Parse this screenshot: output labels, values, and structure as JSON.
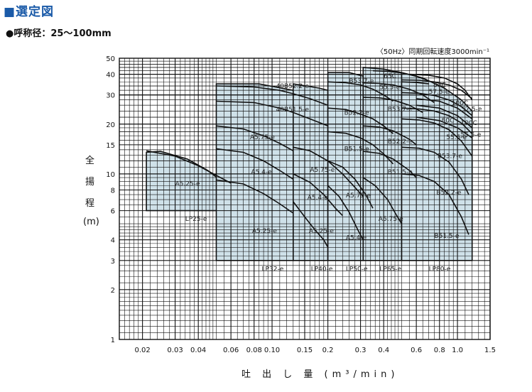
{
  "heading": "■選定図",
  "subheading": "●呼称径：25〜100mm",
  "note": "〈50Hz〉同期回転速度3000min⁻¹",
  "colors": {
    "region_fill": "#cfe1e9",
    "curve": "#111111",
    "grid": "#111111",
    "heading": "#1a5aa8"
  },
  "chart_data": {
    "type": "line",
    "title": "",
    "ylabel_chars": [
      "全",
      "揚",
      "程",
      "(m)"
    ],
    "xlabel": "吐 出 し 量 (m³/min)",
    "xscale": "log",
    "yscale": "log",
    "xlim": [
      0.015,
      1.5
    ],
    "ylim": [
      1,
      50
    ],
    "xticks": [
      0.02,
      0.03,
      0.04,
      0.06,
      0.08,
      0.1,
      0.15,
      0.2,
      0.3,
      0.4,
      0.6,
      0.8,
      1.0,
      1.5
    ],
    "xtick_labels": [
      "0.02",
      "0.03",
      "0.04",
      "0.06",
      "0.08",
      "0.10",
      "0.15",
      "0.2",
      "0.3",
      "0.4",
      "0.6",
      "0.8",
      "1.0",
      "1.5"
    ],
    "yticks": [
      1,
      2,
      3,
      4,
      6,
      8,
      10,
      15,
      20,
      30,
      40,
      50
    ],
    "ytick_labels": [
      "1",
      "2",
      "3",
      "4",
      "6",
      "8",
      "10",
      "15",
      "20",
      "30",
      "40",
      "50"
    ],
    "regions": [
      {
        "name": "LP25-e",
        "poly": [
          [
            0.021,
            6
          ],
          [
            0.021,
            13.5
          ],
          [
            0.025,
            13.7
          ],
          [
            0.035,
            12.3
          ],
          [
            0.045,
            10.5
          ],
          [
            0.055,
            8.8
          ],
          [
            0.06,
            8
          ],
          [
            0.06,
            6
          ]
        ],
        "label_at": [
          0.034,
          5.2
        ]
      },
      {
        "name": "LP32-e",
        "poly": [
          [
            0.05,
            3
          ],
          [
            0.05,
            35
          ],
          [
            0.085,
            35
          ],
          [
            0.13,
            32
          ],
          [
            0.13,
            3
          ]
        ],
        "label_at": [
          0.088,
          2.6
        ]
      },
      {
        "name": "LP40-e",
        "poly": [
          [
            0.13,
            3
          ],
          [
            0.13,
            35
          ],
          [
            0.18,
            33
          ],
          [
            0.2,
            32
          ],
          [
            0.2,
            3
          ]
        ],
        "label_at": [
          0.162,
          2.6
        ]
      },
      {
        "name": "LP50-e",
        "poly": [
          [
            0.2,
            3
          ],
          [
            0.2,
            41
          ],
          [
            0.26,
            41
          ],
          [
            0.31,
            39
          ],
          [
            0.31,
            3
          ]
        ],
        "label_at": [
          0.25,
          2.6
        ]
      },
      {
        "name": "LP65-e",
        "poly": [
          [
            0.31,
            3
          ],
          [
            0.31,
            44
          ],
          [
            0.4,
            43
          ],
          [
            0.5,
            41
          ],
          [
            0.5,
            3
          ]
        ],
        "label_at": [
          0.38,
          2.6
        ]
      },
      {
        "name": "LP80-e",
        "poly": [
          [
            0.5,
            3
          ],
          [
            0.5,
            41
          ],
          [
            0.65,
            38
          ],
          [
            0.85,
            33
          ],
          [
            1.05,
            28
          ],
          [
            1.2,
            24
          ],
          [
            1.2,
            3
          ]
        ],
        "label_at": [
          0.7,
          2.6
        ]
      }
    ],
    "series": [
      {
        "name": "A5.25-e",
        "x": [
          0.021,
          0.03,
          0.04,
          0.05,
          0.06
        ],
        "y": [
          13.8,
          12.8,
          11.2,
          9.8,
          8.8
        ],
        "label_at": [
          0.03,
          8.5
        ]
      },
      {
        "name": "A5.25-e",
        "x": [
          0.05,
          0.07,
          0.09,
          0.11,
          0.13
        ],
        "y": [
          9.2,
          8.7,
          7.6,
          6.6,
          5.8
        ],
        "label_at": [
          0.078,
          4.4
        ]
      },
      {
        "name": "A5.4-e",
        "x": [
          0.05,
          0.07,
          0.09,
          0.11,
          0.13
        ],
        "y": [
          14.2,
          13.5,
          12.0,
          10.5,
          9.3
        ],
        "label_at": [
          0.077,
          10
        ]
      },
      {
        "name": "A5.75-e",
        "x": [
          0.05,
          0.07,
          0.09,
          0.11,
          0.13
        ],
        "y": [
          19.5,
          18.7,
          17,
          15.3,
          13.8
        ],
        "label_at": [
          0.076,
          16.2
        ]
      },
      {
        "name": "40B51.5-e",
        "x": [
          0.05,
          0.08,
          0.11,
          0.13,
          0.16,
          0.2
        ],
        "y": [
          27.5,
          27,
          25,
          23.5,
          21.5,
          19.5
        ],
        "label_at": [
          0.105,
          23.8
        ]
      },
      {
        "name": "40B52.2-e",
        "x": [
          0.05,
          0.08,
          0.11,
          0.13,
          0.16,
          0.2
        ],
        "y": [
          34,
          33.5,
          32,
          30.5,
          28.5,
          26
        ],
        "label_at": [
          0.105,
          33
        ]
      },
      {
        "name": "A5.25-e",
        "x": [
          0.13,
          0.15,
          0.17,
          0.19,
          0.2
        ],
        "y": [
          6.8,
          5.5,
          4.6,
          4,
          3.6
        ],
        "label_at": [
          0.158,
          4.4
        ]
      },
      {
        "name": "A5.4-e",
        "x": [
          0.13,
          0.16,
          0.19,
          0.22,
          0.24
        ],
        "y": [
          10,
          8.9,
          7.5,
          6.2,
          5.6
        ],
        "label_at": [
          0.155,
          7
        ]
      },
      {
        "name": "A5.75-e",
        "x": [
          0.13,
          0.16,
          0.2,
          0.24,
          0.28,
          0.31
        ],
        "y": [
          14.5,
          13.8,
          12,
          10,
          8.3,
          7.3
        ],
        "label_at": [
          0.16,
          10.3
        ]
      },
      {
        "name": "A5.4-e",
        "x": [
          0.2,
          0.23,
          0.26,
          0.29,
          0.31
        ],
        "y": [
          8.5,
          7.3,
          5.9,
          4.6,
          4
        ],
        "label_at": [
          0.25,
          4
        ]
      },
      {
        "name": "A5.75-e",
        "x": [
          0.2,
          0.24,
          0.28,
          0.32,
          0.35
        ],
        "y": [
          12,
          11,
          9.3,
          7.5,
          6.2
        ],
        "label_at": [
          0.25,
          7.2
        ]
      },
      {
        "name": "B51.5-e",
        "x": [
          0.2,
          0.25,
          0.3,
          0.35,
          0.4,
          0.45
        ],
        "y": [
          18,
          17.6,
          16.5,
          15,
          13.2,
          11.5
        ],
        "label_at": [
          0.245,
          13.8
        ]
      },
      {
        "name": "B52.2-e",
        "x": [
          0.2,
          0.25,
          0.3,
          0.35,
          0.4,
          0.45
        ],
        "y": [
          25,
          24.5,
          23,
          21.5,
          19.5,
          17.5
        ],
        "label_at": [
          0.245,
          22.8
        ]
      },
      {
        "name": "B53.7-e",
        "x": [
          0.2,
          0.25,
          0.3,
          0.35,
          0.4,
          0.45
        ],
        "y": [
          36,
          35.6,
          34.5,
          32.5,
          30,
          27.5
        ],
        "label_at": [
          0.26,
          35.4
        ]
      },
      {
        "name": "A5.75-e",
        "x": [
          0.31,
          0.36,
          0.42,
          0.47,
          0.5
        ],
        "y": [
          9.5,
          8.5,
          7,
          5.6,
          5
        ],
        "label_at": [
          0.375,
          5.2
        ]
      },
      {
        "name": "B51.5-e",
        "x": [
          0.31,
          0.38,
          0.45,
          0.55,
          0.6
        ],
        "y": [
          13.7,
          13.3,
          12.3,
          10.5,
          9.5
        ],
        "label_at": [
          0.42,
          10
        ]
      },
      {
        "name": "B52.2-e",
        "x": [
          0.31,
          0.38,
          0.45,
          0.55,
          0.6
        ],
        "y": [
          19.5,
          19.2,
          18.2,
          16.2,
          15
        ],
        "label_at": [
          0.42,
          15.3
        ]
      },
      {
        "name": "B53.7-e",
        "x": [
          0.31,
          0.38,
          0.45,
          0.55,
          0.65
        ],
        "y": [
          29,
          28.8,
          28,
          26,
          23.5
        ],
        "label_at": [
          0.42,
          24
        ]
      },
      {
        "name": "55.5-e",
        "x": [
          0.31,
          0.38,
          0.45,
          0.55,
          0.65,
          0.75
        ],
        "y": [
          35.5,
          35.2,
          34.5,
          32.5,
          30,
          27
        ],
        "label_at": [
          0.38,
          32.5
        ]
      },
      {
        "name": "65C",
        "x": [
          0.35,
          0.42,
          0.5,
          0.6,
          0.7
        ],
        "y": [
          42,
          41.7,
          40.8,
          39,
          36.5
        ],
        "label_at": [
          0.4,
          38
        ]
      },
      {
        "name": "B51.5-e",
        "x": [
          0.5,
          0.62,
          0.75,
          0.9,
          1.05,
          1.15
        ],
        "y": [
          10,
          9.8,
          9,
          7.5,
          5.5,
          4.3
        ],
        "label_at": [
          0.75,
          4.1
        ]
      },
      {
        "name": "B52.2-e",
        "x": [
          0.5,
          0.62,
          0.75,
          0.9,
          1.05,
          1.15
        ],
        "y": [
          14.5,
          14.3,
          13.5,
          11.8,
          9.3,
          7.5
        ],
        "label_at": [
          0.77,
          7.5
        ]
      },
      {
        "name": "B53.7-e",
        "x": [
          0.5,
          0.62,
          0.75,
          0.9,
          1.05,
          1.2
        ],
        "y": [
          21.5,
          21.2,
          20.3,
          18.5,
          15.8,
          12.8
        ],
        "label_at": [
          0.78,
          12.5
        ]
      },
      {
        "name": "55.5-e",
        "x": [
          0.5,
          0.62,
          0.75,
          0.9,
          1.05,
          1.2
        ],
        "y": [
          25,
          24.7,
          24,
          22.5,
          20.3,
          17.5
        ],
        "label_at": [
          0.87,
          16.2
        ]
      },
      {
        "name": "80C",
        "x": [
          0.5,
          0.62,
          0.75,
          0.9,
          1.05,
          1.2
        ],
        "y": [
          31,
          30.7,
          29.8,
          28,
          25.5,
          22.5
        ],
        "label_at": [
          0.82,
          20.5
        ]
      },
      {
        "name": "57.5-e",
        "x": [
          0.5,
          0.62,
          0.75,
          0.9,
          1.05,
          1.2
        ],
        "y": [
          37,
          36.8,
          36,
          34.5,
          32,
          28.5
        ],
        "label_at": [
          0.7,
          30.5
        ]
      },
      {
        "name": "100C",
        "x": [
          0.55,
          0.7,
          0.85,
          1.0,
          1.1,
          1.2
        ],
        "y": [
          40,
          39.5,
          38,
          35,
          32,
          28
        ],
        "label_at": [
          0.93,
          26
        ]
      },
      {
        "name": "80C",
        "x": [
          0.5,
          0.6,
          0.7
        ],
        "y": [
          36,
          35.7,
          35
        ],
        "label_at": [
          0.74,
          33.5
        ]
      },
      {
        "name": "57.5-e",
        "x": [
          0.6,
          0.8,
          1.0,
          1.2
        ],
        "y": [
          28.5,
          27.5,
          25,
          21.5
        ],
        "label_at": [
          1.05,
          24
        ]
      },
      {
        "name": "100C",
        "x": [
          0.6,
          0.8,
          1.0,
          1.2
        ],
        "y": [
          26,
          25,
          22.5,
          19
        ],
        "label_at": [
          1.04,
          19.8
        ]
      },
      {
        "name": "55.5-e",
        "x": [
          0.6,
          0.8,
          1.0,
          1.2
        ],
        "y": [
          22,
          21,
          19,
          16.5
        ],
        "label_at": [
          1.04,
          16.8
        ]
      }
    ]
  }
}
